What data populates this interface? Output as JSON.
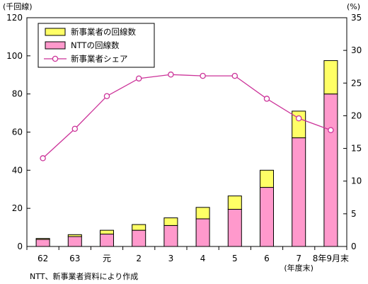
{
  "chart_data": {
    "type": "bar+line",
    "categories": [
      "62",
      "63",
      "元",
      "2",
      "3",
      "4",
      "5",
      "6",
      "7",
      "8年9月末"
    ],
    "category_sublabels": {
      "7": "(年度末)"
    },
    "series": [
      {
        "name": "NTTの回線数",
        "kind": "bar",
        "stack": "total",
        "axis": "left",
        "color": "#ff99cc",
        "values": [
          3.7,
          5.2,
          6.5,
          8.5,
          11,
          14.5,
          19.5,
          31,
          57,
          80
        ]
      },
      {
        "name": "新事業者の回線数",
        "kind": "bar",
        "stack": "total",
        "axis": "left",
        "color": "#ffff66",
        "values": [
          0.5,
          1.0,
          2.0,
          3.0,
          4.0,
          6.0,
          7.0,
          9.0,
          14.0,
          17.5
        ]
      },
      {
        "name": "新事業者シェア",
        "kind": "line",
        "axis": "right",
        "color": "#cc3399",
        "values": [
          13.5,
          18.0,
          23.0,
          25.7,
          26.3,
          26.1,
          26.1,
          22.6,
          19.6,
          17.8
        ]
      }
    ],
    "y_left": {
      "unit_label": "(千回線)",
      "min": 0,
      "max": 120,
      "ticks": [
        0,
        20,
        40,
        60,
        80,
        100,
        120
      ]
    },
    "y_right": {
      "unit_label": "(%)",
      "min": 0,
      "max": 35,
      "ticks": [
        0,
        5,
        10,
        15,
        20,
        25,
        30,
        35
      ]
    },
    "legend_position": "top-left",
    "grid": false
  },
  "source_note": "NTT、新事業者資料により作成"
}
